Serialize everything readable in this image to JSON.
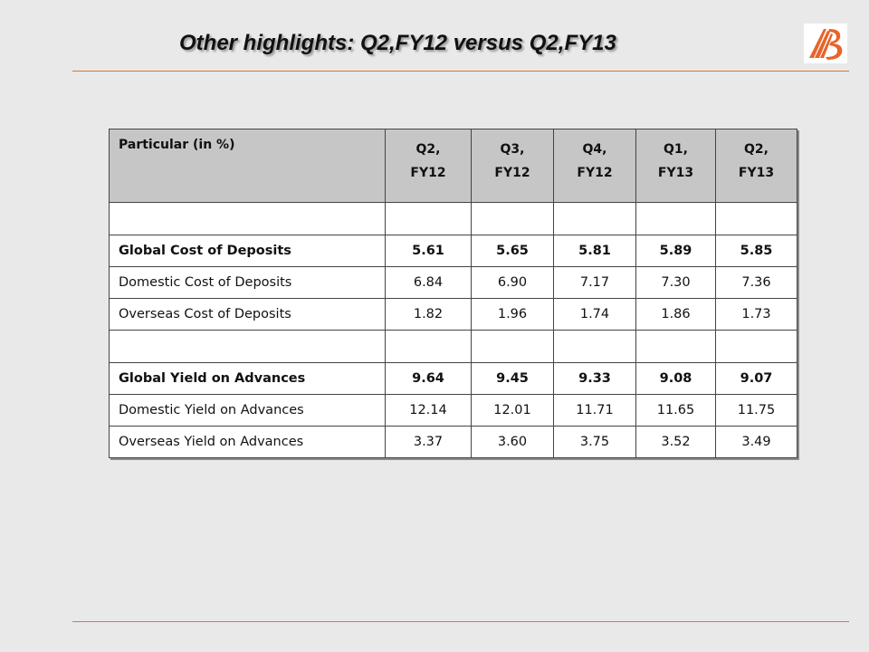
{
  "slide": {
    "title": "Other highlights: Q2,FY12 versus Q2,FY13"
  },
  "brand": {
    "logo_icon": "bank-of-baroda-logo",
    "logo_color": "#e8642a",
    "rule_color": "#d9773f"
  },
  "table": {
    "header": {
      "label": "Particular (in %)",
      "columns": [
        {
          "line1": "Q2,",
          "line2": "FY12"
        },
        {
          "line1": "Q3,",
          "line2": "FY12"
        },
        {
          "line1": "Q4,",
          "line2": "FY12"
        },
        {
          "line1": "Q1,",
          "line2": "FY13"
        },
        {
          "line1": "Q2,",
          "line2": "FY13"
        }
      ]
    },
    "rows": [
      {
        "label": "Global Cost of Deposits",
        "values": [
          "5.61",
          "5.65",
          "5.81",
          "5.89",
          "5.85"
        ]
      },
      {
        "label": "Domestic Cost of Deposits",
        "values": [
          "6.84",
          "6.90",
          "7.17",
          "7.30",
          "7.36"
        ]
      },
      {
        "label": "Overseas Cost of Deposits",
        "values": [
          "1.82",
          "1.96",
          "1.74",
          "1.86",
          "1.73"
        ]
      },
      {
        "label": "Global Yield on Advances",
        "values": [
          "9.64",
          "9.45",
          "9.33",
          "9.08",
          "9.07"
        ]
      },
      {
        "label": "Domestic Yield on Advances",
        "values": [
          "12.14",
          "12.01",
          "11.71",
          "11.65",
          "11.75"
        ]
      },
      {
        "label": "Overseas Yield on Advances",
        "values": [
          "3.37",
          "3.60",
          "3.75",
          "3.52",
          "3.49"
        ]
      }
    ]
  }
}
